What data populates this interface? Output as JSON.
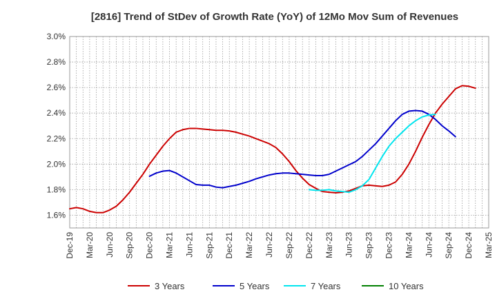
{
  "chart_data": {
    "type": "line",
    "title": "[2816]  Trend of StDev of Growth Rate (YoY) of 12Mo Mov Sum of Revenues",
    "xlabel": "",
    "ylabel": "",
    "ylim": [
      1.5,
      3.0
    ],
    "yticks": [
      1.6,
      1.8,
      2.0,
      2.2,
      2.4,
      2.6,
      2.8,
      3.0
    ],
    "ytick_labels": [
      "1.6%",
      "1.8%",
      "2.0%",
      "2.2%",
      "2.4%",
      "2.6%",
      "2.8%",
      "3.0%"
    ],
    "xtick_labels": [
      "Dec-19",
      "Mar-20",
      "Jun-20",
      "Sep-20",
      "Dec-20",
      "Mar-21",
      "Jun-21",
      "Sep-21",
      "Dec-21",
      "Mar-22",
      "Jun-22",
      "Sep-22",
      "Dec-22",
      "Mar-23",
      "Jun-23",
      "Sep-23",
      "Dec-23",
      "Mar-24",
      "Jun-24",
      "Sep-24",
      "Dec-24",
      "Mar-25"
    ],
    "x_start": "Dec-19",
    "x_end": "Mar-25",
    "grid": true,
    "legend_position": "bottom",
    "series": [
      {
        "name": "3 Years",
        "color": "#cc0000",
        "start": "Dec-19",
        "values": [
          1.65,
          1.66,
          1.65,
          1.63,
          1.62,
          1.62,
          1.64,
          1.67,
          1.72,
          1.78,
          1.85,
          1.92,
          2.0,
          2.07,
          2.14,
          2.2,
          2.25,
          2.27,
          2.28,
          2.28,
          2.275,
          2.27,
          2.265,
          2.265,
          2.26,
          2.25,
          2.235,
          2.22,
          2.2,
          2.18,
          2.16,
          2.13,
          2.08,
          2.02,
          1.95,
          1.89,
          1.84,
          1.81,
          1.785,
          1.78,
          1.775,
          1.78,
          1.79,
          1.81,
          1.83,
          1.835,
          1.83,
          1.825,
          1.835,
          1.86,
          1.92,
          2.0,
          2.1,
          2.21,
          2.31,
          2.4,
          2.47,
          2.53,
          2.59,
          2.615,
          2.61,
          2.595
        ]
      },
      {
        "name": "5 Years",
        "color": "#0000cc",
        "start": "Dec-20",
        "values": [
          1.905,
          1.93,
          1.945,
          1.95,
          1.93,
          1.9,
          1.87,
          1.84,
          1.835,
          1.835,
          1.82,
          1.815,
          1.825,
          1.835,
          1.85,
          1.865,
          1.885,
          1.9,
          1.915,
          1.925,
          1.93,
          1.93,
          1.925,
          1.92,
          1.915,
          1.91,
          1.91,
          1.92,
          1.945,
          1.97,
          1.995,
          2.02,
          2.06,
          2.11,
          2.16,
          2.22,
          2.28,
          2.34,
          2.39,
          2.415,
          2.42,
          2.415,
          2.39,
          2.35,
          2.3,
          2.26,
          2.215
        ]
      },
      {
        "name": "7 Years",
        "color": "#00e5ee",
        "start": "Dec-22",
        "values": [
          1.8,
          1.795,
          1.795,
          1.8,
          1.79,
          1.785,
          1.78,
          1.8,
          1.83,
          1.88,
          1.97,
          2.06,
          2.14,
          2.2,
          2.25,
          2.3,
          2.34,
          2.37,
          2.385,
          2.39
        ]
      },
      {
        "name": "10 Years",
        "color": "#008000",
        "start": "Dec-24",
        "values": []
      }
    ]
  }
}
